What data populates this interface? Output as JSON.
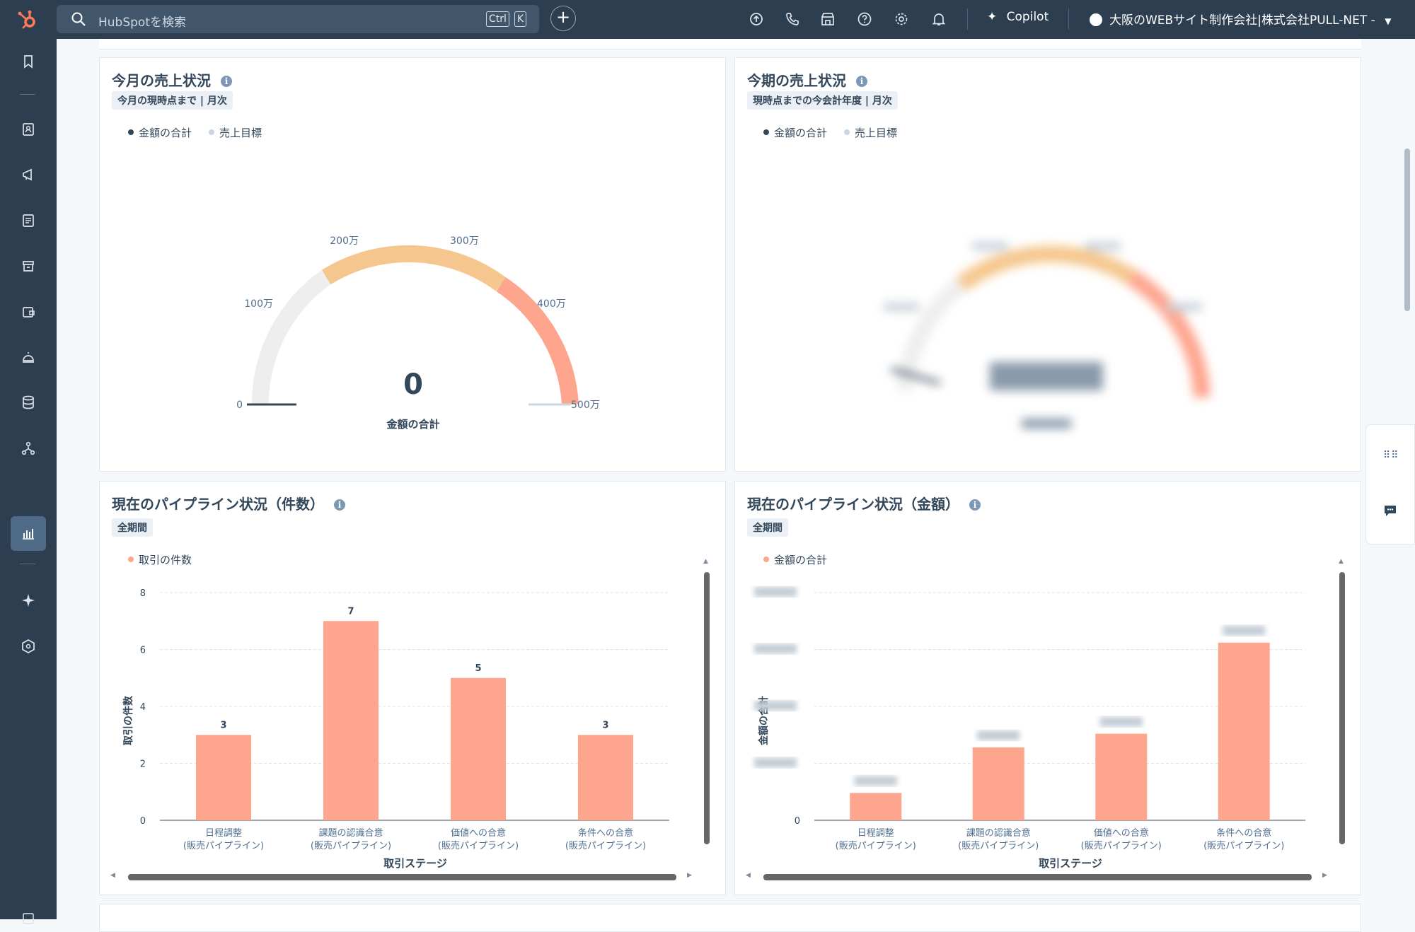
{
  "topbar": {
    "search_placeholder": "HubSpotを検索",
    "kbd_ctrl": "Ctrl",
    "kbd_k": "K",
    "plus": "+",
    "copilot": "Copilot",
    "account": "大阪のWEBサイト制作会社|株式会社PULL-NET -",
    "icons": [
      "upgrade-icon",
      "phone-icon",
      "marketplace-icon",
      "help-icon",
      "settings-icon",
      "notifications-icon"
    ]
  },
  "sidebar": {
    "icons": [
      "bookmark-icon",
      "contacts-icon",
      "marketing-icon",
      "content-icon",
      "commerce-icon",
      "sales-icon",
      "service-icon",
      "data-icon",
      "automation-icon",
      "reporting-icon",
      "breeze-icon",
      "development-icon"
    ]
  },
  "cards": {
    "gauge1": {
      "title": "今月の売上状況",
      "badge": "今月の現時点まで | 月次",
      "legend": [
        "金額の合計",
        "売上目標"
      ],
      "value": "0",
      "value_label": "金額の合計",
      "ticks": [
        "0",
        "100万",
        "200万",
        "300万",
        "400万",
        "500万"
      ]
    },
    "gauge2": {
      "title": "今期の売上状況",
      "badge": "現時点までの今会計年度 | 月次",
      "legend": [
        "金額の合計",
        "売上目標"
      ]
    },
    "bar1": {
      "title": "現在のパイプライン状況（件数）",
      "badge": "全期間",
      "legend": "取引の件数",
      "ylabel": "取引の件数",
      "xlabel": "取引ステージ"
    },
    "bar2": {
      "title": "現在のパイプライン状況（金額）",
      "badge": "全期間",
      "legend": "金額の合計",
      "ylabel": "金額の合計",
      "xlabel": "取引ステージ"
    }
  },
  "chart_data": [
    {
      "type": "gauge",
      "title": "今月の売上状況",
      "value": 0,
      "range": [
        0,
        5000000
      ],
      "ticks": [
        "0",
        "100万",
        "200万",
        "300万",
        "400万",
        "500万"
      ],
      "bands": [
        {
          "from": 0,
          "to": 2000000,
          "color": "#eeeeee"
        },
        {
          "from": 2000000,
          "to": 3800000,
          "color": "#f5c78e"
        },
        {
          "from": 3800000,
          "to": 5000000,
          "color": "#fea58e"
        }
      ],
      "legend": [
        "金額の合計",
        "売上目標"
      ]
    },
    {
      "type": "bar",
      "categories": [
        "日程調整\n(販売パイプライン)",
        "課題の認識合意\n(販売パイプライン)",
        "価値への合意\n(販売パイプライン)",
        "条件への合意\n(販売パイプライン)"
      ],
      "series": [
        {
          "name": "取引の件数",
          "values": [
            3,
            7,
            5,
            3
          ],
          "color": "#fea58e"
        }
      ],
      "yticks": [
        "0",
        "2",
        "4",
        "6",
        "8"
      ],
      "ylim": [
        0,
        8
      ],
      "ylabel": "取引の件数",
      "xlabel": "取引ステージ"
    },
    {
      "type": "bar",
      "categories": [
        "日程調整\n(販売パイプライン)",
        "課題の認識合意\n(販売パイプライン)",
        "価値への合意\n(販売パイプライン)",
        "条件への合意\n(販売パイプライン)"
      ],
      "series": [
        {
          "name": "金額の合計",
          "values": [
            0.6,
            1.6,
            1.9,
            3.9
          ],
          "color": "#fea58e"
        }
      ],
      "yticks": [
        "0"
      ],
      "ylim": [
        0,
        5
      ],
      "ylabel": "金額の合計",
      "xlabel": "取引ステージ"
    }
  ],
  "colors": {
    "nav": "#2d3e50",
    "accent": "#ff7a59",
    "bar": "#fea58e",
    "series_dark": "#33475b",
    "target": "#cbd6e2"
  }
}
